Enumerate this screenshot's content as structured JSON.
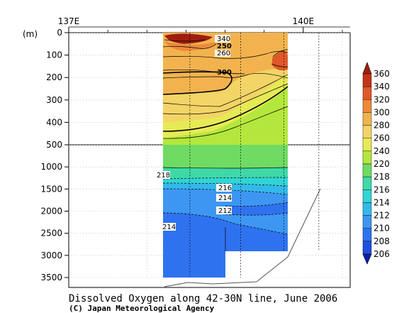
{
  "chart_data": {
    "type": "contour",
    "title": "Dissolved Oxygen along 42-30N line, June 2006",
    "credit": "(C) Japan Meteorological Agency",
    "x_axis": {
      "ticks": [
        {
          "label": "137E",
          "lon": 137
        },
        {
          "label": "140E",
          "lon": 140
        }
      ],
      "range": [
        137,
        140.6
      ]
    },
    "y_axis": {
      "unit_label": "(m)",
      "upper_panel": {
        "range": [
          0,
          500
        ],
        "ticks": [
          0,
          100,
          200,
          300,
          400,
          500
        ]
      },
      "lower_panel": {
        "range": [
          500,
          3500
        ],
        "ticks": [
          1000,
          1500,
          2000,
          2500,
          3000,
          3500
        ]
      }
    },
    "colorbar": {
      "levels": [
        206,
        208,
        210,
        212,
        214,
        216,
        218,
        220,
        240,
        260,
        280,
        300,
        320,
        340,
        360
      ],
      "colors": [
        "#0a1fa8",
        "#1e4fe0",
        "#2f72f0",
        "#3d97f2",
        "#32b9ea",
        "#31d4d4",
        "#3fd9a8",
        "#6fdb63",
        "#b4e73d",
        "#e6ea55",
        "#f3d466",
        "#f2b34e",
        "#ec8a3a",
        "#e0572a",
        "#c43318",
        "#a01e10"
      ]
    },
    "contour_labels": [
      "340",
      "250",
      "260",
      "300",
      "218",
      "216",
      "214",
      "212",
      "214"
    ],
    "station_lons": [
      138.55,
      139.2,
      139.75,
      140.2
    ]
  }
}
